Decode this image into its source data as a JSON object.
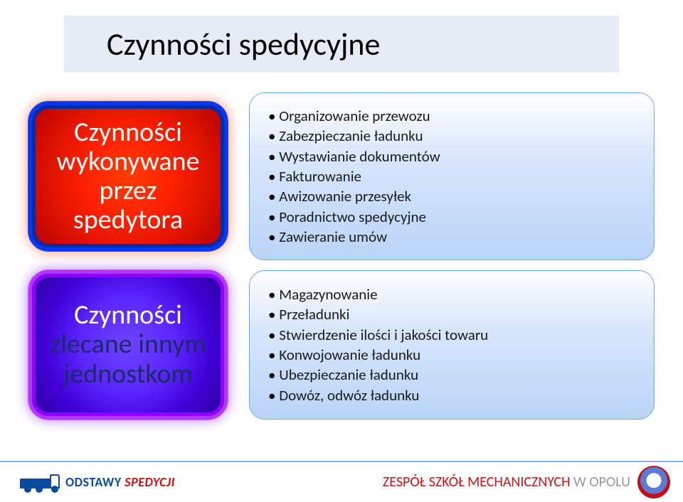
{
  "title": "Czynności spedycyjne",
  "row1": {
    "badge_lines": [
      "Czynności",
      "wykonywane",
      "przez",
      "spedytora"
    ],
    "badge_text_color": "#ffffff",
    "badge_bg": "red",
    "items": [
      "Organizowanie przewozu",
      "Zabezpieczanie ładunku",
      "Wystawianie dokumentów",
      "Fakturowanie",
      "Awizowanie przesyłek",
      "Poradnictwo spedycyjne",
      "Zawieranie umów"
    ]
  },
  "row2": {
    "badge_lines": [
      "Czynności",
      "zlecane innym",
      "jednostkom"
    ],
    "items": [
      "Magazynowanie",
      "Przeładunki",
      "Stwierdzenie ilości i jakości towaru",
      "Konwojowanie ładunku",
      "Ubezpieczanie ładunku",
      "Dowóz, odwóz ładunku"
    ]
  },
  "footer": {
    "logo_word1": "ODSTAWY",
    "logo_word2": " SPEDYCJI",
    "right_red": "ZESPÓŁ SZKÓŁ MECHANICZNYCH",
    "right_grey": " W OPOLU"
  },
  "style": {
    "title_bg": "#e5ecf5",
    "title_fontsize": 44,
    "panel_border": "#6fa8ff",
    "panel_bg_top": "#ffffff",
    "panel_bg_bottom": "#bad4f7",
    "list_fontsize": 21,
    "badge_fontsize": 38,
    "footer_rule": "#8cb4e8",
    "brand_blue": "#0b4aa0",
    "brand_red": "#d01010",
    "grey": "#9a9a9a",
    "red_badge_border": "#0038ff",
    "violet_badge_border": "#b038ff",
    "dark_blue_text": "#1a2c63"
  }
}
